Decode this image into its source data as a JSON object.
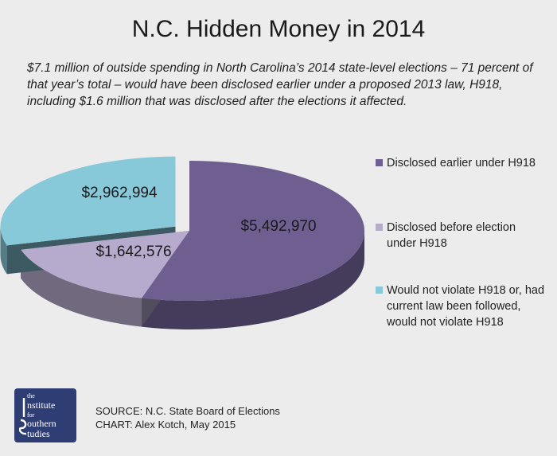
{
  "title": "N.C. Hidden Money in 2014",
  "subtitle": "$7.1 million of outside spending in North Carolina’s 2014 state-level elections – 71 percent of that year’s total – would have been disclosed earlier under a proposed 2013 law, H918, including $1.6 million that was disclosed after the elections it affected.",
  "chart_data": {
    "type": "pie",
    "title": "N.C. Hidden Money in 2014",
    "legend_position": "right",
    "slices": [
      {
        "label": "Disclosed earlier under H918",
        "value": 5492970,
        "display": "$5,492,970",
        "color": "#6f5f91"
      },
      {
        "label": "Disclosed before election under H918",
        "value": 1642576,
        "display": "$1,642,576",
        "color": "#b7abcd"
      },
      {
        "label": "Would not violate H918 or, had current law been followed, would not violate H918",
        "value": 2962994,
        "display": "$2,962,994",
        "color": "#88c9d9"
      }
    ]
  },
  "footer": {
    "source": "SOURCE: N.C. State Board of Elections",
    "credit": "CHART: Alex Kotch, May 2015",
    "logo_lines": [
      "the",
      "nstitute",
      "for",
      "outhern",
      "tudies"
    ]
  }
}
